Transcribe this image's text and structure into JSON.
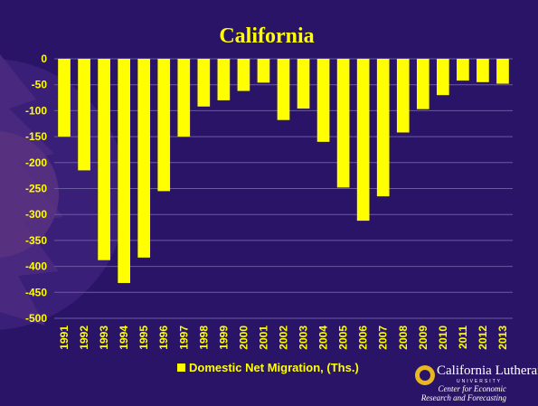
{
  "chart_data": {
    "type": "bar",
    "title": "California",
    "categories": [
      "1991",
      "1992",
      "1993",
      "1994",
      "1995",
      "1996",
      "1997",
      "1998",
      "1999",
      "2000",
      "2001",
      "2002",
      "2003",
      "2004",
      "2005",
      "2006",
      "2007",
      "2008",
      "2009",
      "2010",
      "2011",
      "2012",
      "2013"
    ],
    "series": [
      {
        "name": "Domestic Net Migration, (Ths.)",
        "values": [
          -150,
          -215,
          -388,
          -432,
          -383,
          -255,
          -150,
          -92,
          -80,
          -62,
          -46,
          -118,
          -96,
          -160,
          -248,
          -312,
          -265,
          -142,
          -97,
          -70,
          -42,
          -45,
          -48
        ]
      }
    ],
    "ylim": [
      -500,
      0
    ],
    "yticks": [
      0,
      -50,
      -100,
      -150,
      -200,
      -250,
      -300,
      -350,
      -400,
      -450,
      -500
    ],
    "grid": true,
    "legend_position": "bottom",
    "colors": {
      "bar": "#ffff00",
      "text": "#ffff00",
      "background": "#2a1468",
      "grid": "#6a5aa0"
    }
  },
  "logo": {
    "name": "California Lutheran",
    "tagline": "UNIVERSITY",
    "line1": "Center for Economic",
    "line2": "Research and Forecasting"
  }
}
